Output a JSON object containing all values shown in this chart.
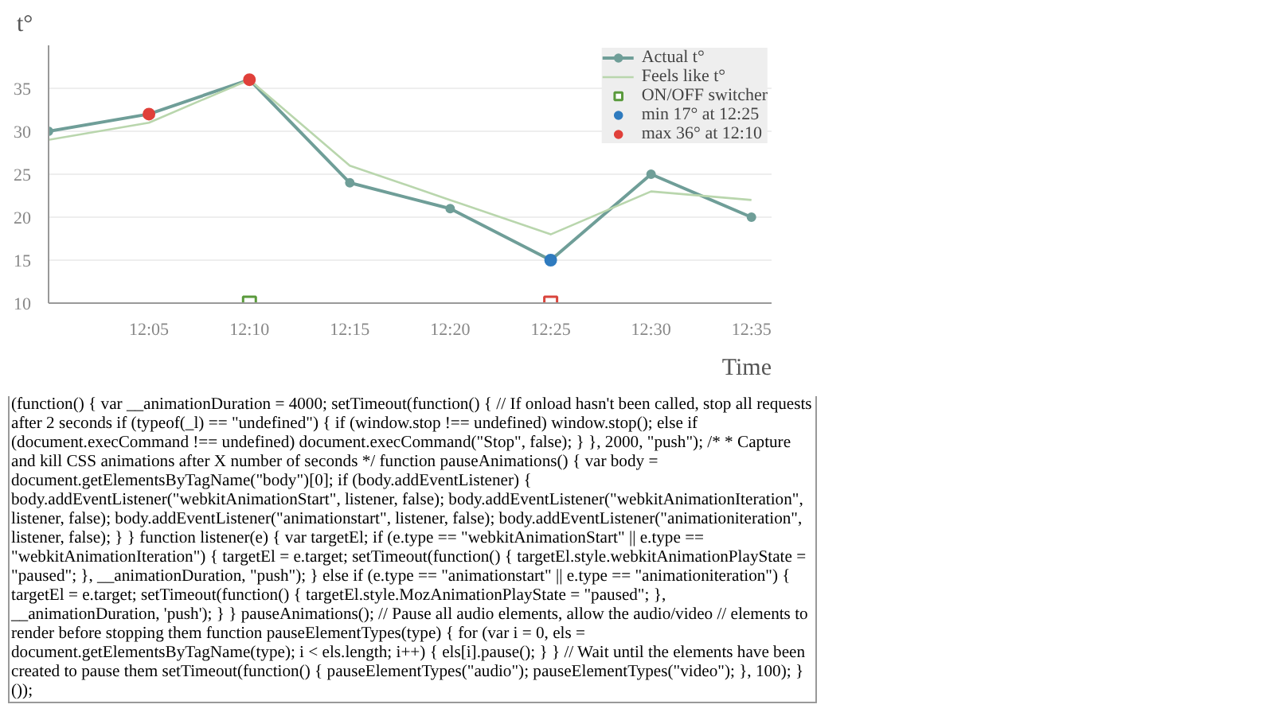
{
  "chart_data": {
    "type": "line",
    "xlabel": "Time",
    "ylabel": "t°",
    "xlim": [
      12.0,
      12.6
    ],
    "ylim": [
      10,
      40
    ],
    "xticks": [
      {
        "value": 12.0833,
        "label": "12:05"
      },
      {
        "value": 12.1667,
        "label": "12:10"
      },
      {
        "value": 12.25,
        "label": "12:15"
      },
      {
        "value": 12.3333,
        "label": "12:20"
      },
      {
        "value": 12.4167,
        "label": "12:25"
      },
      {
        "value": 12.5,
        "label": "12:30"
      },
      {
        "value": 12.5833,
        "label": "12:35"
      }
    ],
    "yticks": [
      10,
      15,
      20,
      25,
      30,
      35
    ],
    "grid": "y",
    "legend": "top right",
    "series": [
      {
        "name": "Actual t°",
        "color": "#6f9e98",
        "marker": "circle",
        "x": [
          12.0,
          12.0833,
          12.1667,
          12.25,
          12.3333,
          12.4167,
          12.5,
          12.5833
        ],
        "values": [
          30,
          32,
          36,
          24,
          21,
          15,
          25,
          20
        ]
      },
      {
        "name": "Feels like t°",
        "color": "#b9d6ad",
        "marker": "none",
        "x": [
          12.0,
          12.0833,
          12.1667,
          12.25,
          12.3333,
          12.4167,
          12.5,
          12.5833
        ],
        "values": [
          29,
          31,
          36,
          26,
          22,
          18,
          23,
          22
        ]
      },
      {
        "name": "ON/OFF switcher",
        "type": "scatter",
        "marker": "square",
        "colors": [
          "#5a9a3c",
          "#d9453d"
        ],
        "x": [
          12.1667,
          12.4167
        ],
        "values": [
          10,
          10
        ]
      },
      {
        "name": "min 17° at 12:25",
        "type": "scatter",
        "marker": "circle",
        "color": "#2f7bbf",
        "x": [
          12.4167
        ],
        "values": [
          15
        ]
      },
      {
        "name": "max 36° at 12:10",
        "type": "scatter",
        "marker": "circle",
        "color": "#e0403a",
        "x": [
          12.0833,
          12.1667
        ],
        "values": [
          32,
          36
        ]
      }
    ],
    "annotations": [
      "(function() { var __animationDuration = 4000; setTimeout(function() { // If onload hasn't been called, stop all requests after 2 seconds if (typeof(_l) == \"undefined\") { if (window.stop !== undefined) window.stop(); else if (document.execCommand !== undefined) document.execCommand(\"Stop\", false); } }, 2000, \"push\"); /* * Capture and kill CSS animations after X number of seconds */ function pauseAnimations() { var body = document.getElementsByTagName(\"body\")[0]; if (body.addEventListener) { body.addEventListener(\"webkitAnimationStart\", listener, false); body.addEventListener(\"webkitAnimationIteration\", listener, false); body.addEventListener(\"animationstart\", listener, false); body.addEventListener(\"animationiteration\", listener, false); } } function listener(e) { var targetEl; if (e.type == \"webkitAnimationStart\" || e.type == \"webkitAnimationIteration\") { targetEl = e.target; setTimeout(function() { targetEl.style.webkitAnimationPlayState = \"paused\"; }, __animationDuration, \"push\"); } else if (e.type == \"animationstart\" || e.type == \"animationiteration\") { targetEl = e.target; setTimeout(function() { targetEl.style.MozAnimationPlayState = \"paused\"; }, __animationDuration, 'push'); } } pauseAnimations(); // Pause all audio elements, allow the audio/video // elements to render before stopping them function pauseElementTypes(type) { for (var i = 0, els = document.getElementsByTagName(type); i < els.length; i++) { els[i].pause(); } } // Wait until the elements have been created to pause them setTimeout(function() { pauseElementTypes(\"audio\"); pauseElementTypes(\"video\"); }, 100); }());"
    ]
  }
}
